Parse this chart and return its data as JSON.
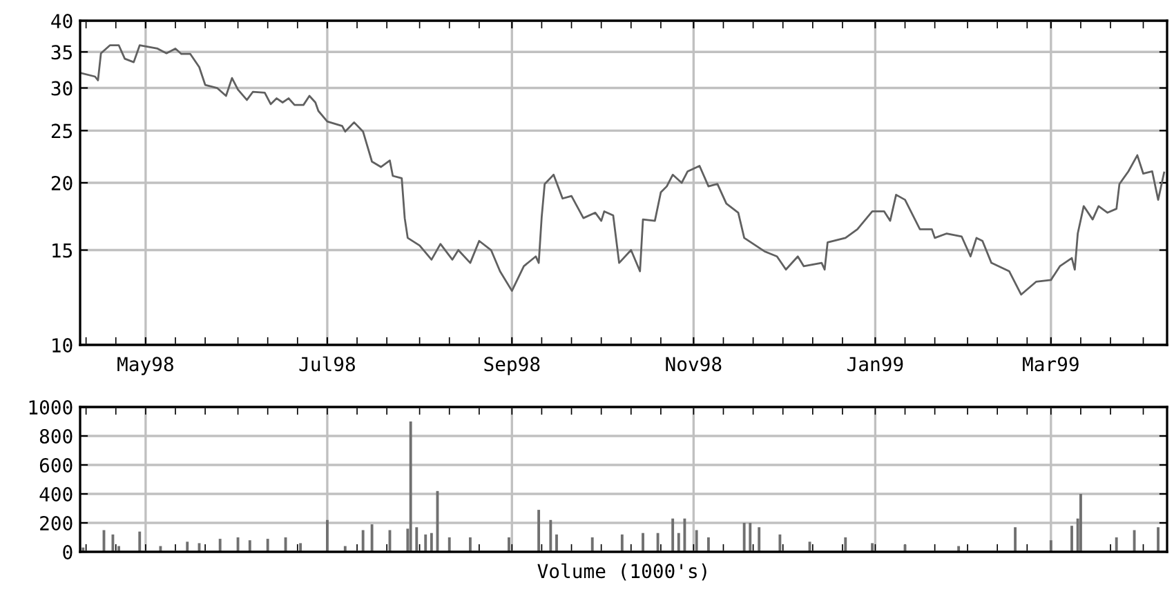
{
  "chart_data": [
    {
      "type": "line",
      "log": "y",
      "grid": true,
      "line_style": "solid",
      "marker": "none",
      "xlim": [
        "1998-04-09",
        "1999-04-09"
      ],
      "xticks": [
        {
          "value": "1998-04-11",
          "label": null
        },
        {
          "value": "1998-04-21",
          "label": null
        },
        {
          "value": "1998-05-01",
          "label": "May98"
        },
        {
          "value": "1998-05-11",
          "label": null
        },
        {
          "value": "1998-05-21",
          "label": null
        },
        {
          "value": "1998-06-01",
          "label": null
        },
        {
          "value": "1998-06-11",
          "label": null
        },
        {
          "value": "1998-06-21",
          "label": null
        },
        {
          "value": "1998-07-01",
          "label": "Jul98"
        },
        {
          "value": "1998-07-11",
          "label": null
        },
        {
          "value": "1998-07-21",
          "label": null
        },
        {
          "value": "1998-08-01",
          "label": null
        },
        {
          "value": "1998-08-11",
          "label": null
        },
        {
          "value": "1998-08-21",
          "label": null
        },
        {
          "value": "1998-09-01",
          "label": "Sep98"
        },
        {
          "value": "1998-09-11",
          "label": null
        },
        {
          "value": "1998-09-21",
          "label": null
        },
        {
          "value": "1998-10-01",
          "label": null
        },
        {
          "value": "1998-10-11",
          "label": null
        },
        {
          "value": "1998-10-21",
          "label": null
        },
        {
          "value": "1998-11-01",
          "label": "Nov98"
        },
        {
          "value": "1998-11-11",
          "label": null
        },
        {
          "value": "1998-11-21",
          "label": null
        },
        {
          "value": "1998-12-01",
          "label": null
        },
        {
          "value": "1998-12-11",
          "label": null
        },
        {
          "value": "1998-12-21",
          "label": null
        },
        {
          "value": "1999-01-01",
          "label": "Jan99"
        },
        {
          "value": "1999-01-11",
          "label": null
        },
        {
          "value": "1999-01-21",
          "label": null
        },
        {
          "value": "1999-02-01",
          "label": null
        },
        {
          "value": "1999-02-11",
          "label": null
        },
        {
          "value": "1999-02-21",
          "label": null
        },
        {
          "value": "1999-03-01",
          "label": "Mar99"
        },
        {
          "value": "1999-03-11",
          "label": null
        },
        {
          "value": "1999-03-21",
          "label": null
        },
        {
          "value": "1999-04-01",
          "label": null
        }
      ],
      "ylim": [
        10,
        40
      ],
      "yticks": [
        10,
        15,
        20,
        25,
        30,
        35,
        40
      ],
      "x": [
        "1998-04-09",
        "1998-04-14",
        "1998-04-15",
        "1998-04-16",
        "1998-04-19",
        "1998-04-22",
        "1998-04-24",
        "1998-04-27",
        "1998-04-29",
        "1998-05-05",
        "1998-05-08",
        "1998-05-11",
        "1998-05-13",
        "1998-05-16",
        "1998-05-19",
        "1998-05-21",
        "1998-05-25",
        "1998-05-28",
        "1998-05-30",
        "1998-06-01",
        "1998-06-04",
        "1998-06-06",
        "1998-06-10",
        "1998-06-12",
        "1998-06-14",
        "1998-06-16",
        "1998-06-18",
        "1998-06-20",
        "1998-06-23",
        "1998-06-25",
        "1998-06-27",
        "1998-06-28",
        "1998-07-01",
        "1998-07-06",
        "1998-07-07",
        "1998-07-10",
        "1998-07-13",
        "1998-07-16",
        "1998-07-19",
        "1998-07-22",
        "1998-07-23",
        "1998-07-26",
        "1998-07-27",
        "1998-07-28",
        "1998-08-01",
        "1998-08-05",
        "1998-08-08",
        "1998-08-12",
        "1998-08-14",
        "1998-08-18",
        "1998-08-21",
        "1998-08-25",
        "1998-08-28",
        "1998-09-01",
        "1998-09-05",
        "1998-09-09",
        "1998-09-10",
        "1998-09-11",
        "1998-09-12",
        "1998-09-15",
        "1998-09-18",
        "1998-09-21",
        "1998-09-25",
        "1998-09-29",
        "1998-10-01",
        "1998-10-02",
        "1998-10-05",
        "1998-10-07",
        "1998-10-11",
        "1998-10-14",
        "1998-10-15",
        "1998-10-19",
        "1998-10-21",
        "1998-10-23",
        "1998-10-25",
        "1998-10-28",
        "1998-10-30",
        "1998-11-03",
        "1998-11-06",
        "1998-11-09",
        "1998-11-12",
        "1998-11-16",
        "1998-11-18",
        "1998-11-25",
        "1998-11-29",
        "1998-12-02",
        "1998-12-06",
        "1998-12-08",
        "1998-12-14",
        "1998-12-15",
        "1998-12-16",
        "1998-12-22",
        "1998-12-26",
        "1998-12-31",
        "1999-01-04",
        "1999-01-06",
        "1999-01-08",
        "1999-01-11",
        "1999-01-16",
        "1999-01-20",
        "1999-01-21",
        "1999-01-25",
        "1999-01-30",
        "1999-02-02",
        "1999-02-04",
        "1999-02-06",
        "1999-02-09",
        "1999-02-15",
        "1999-02-19",
        "1999-02-24",
        "1999-03-01",
        "1999-03-04",
        "1999-03-08",
        "1999-03-09",
        "1999-03-10",
        "1999-03-12",
        "1999-03-15",
        "1999-03-17",
        "1999-03-20",
        "1999-03-23",
        "1999-03-24",
        "1999-03-27",
        "1999-03-30",
        "1999-04-01",
        "1999-04-04",
        "1999-04-06",
        "1999-04-08"
      ],
      "series": [
        {
          "color": "#606060",
          "values": [
            32,
            31.5,
            31,
            34.8,
            36,
            36,
            34,
            33.5,
            36,
            35.5,
            34.8,
            35.5,
            34.7,
            34.7,
            32.8,
            30.4,
            30,
            29,
            31.3,
            29.8,
            28.5,
            29.5,
            29.4,
            28,
            28.7,
            28.2,
            28.7,
            27.9,
            27.9,
            29,
            28.2,
            27.2,
            26,
            25.5,
            24.9,
            25.9,
            24.9,
            21.9,
            21.4,
            22,
            20.6,
            20.4,
            17.2,
            15.8,
            15.3,
            14.4,
            15.4,
            14.4,
            15,
            14.2,
            15.6,
            15,
            13.7,
            12.6,
            14,
            14.6,
            14.2,
            17.3,
            19.9,
            20.7,
            18.7,
            18.9,
            17.2,
            17.6,
            17,
            17.7,
            17.4,
            14.2,
            15,
            13.7,
            17.1,
            17,
            19.2,
            19.7,
            20.7,
            20,
            21,
            21.5,
            19.7,
            19.9,
            18.3,
            17.6,
            15.8,
            14.9,
            14.6,
            13.8,
            14.6,
            14,
            14.2,
            13.8,
            15.5,
            15.8,
            16.4,
            17.7,
            17.7,
            17,
            19,
            18.6,
            16.4,
            16.4,
            15.8,
            16.1,
            15.9,
            14.6,
            15.8,
            15.6,
            14.2,
            13.7,
            12.4,
            13.1,
            13.2,
            14,
            14.5,
            13.8,
            16.1,
            18.1,
            17.1,
            18.1,
            17.6,
            17.9,
            19.9,
            21,
            22.5,
            20.8,
            21,
            18.6,
            20.9
          ]
        }
      ]
    },
    {
      "type": "bar",
      "grid": true,
      "tick_labels": "y",
      "xlabel": "Volume (1000's)",
      "xlim": [
        "1998-04-09",
        "1999-04-09"
      ],
      "xticks": [
        {
          "value": "1998-04-11",
          "label": null
        },
        {
          "value": "1998-04-21",
          "label": null
        },
        {
          "value": "1998-05-01",
          "label": null
        },
        {
          "value": "1998-05-11",
          "label": null
        },
        {
          "value": "1998-05-21",
          "label": null
        },
        {
          "value": "1998-06-01",
          "label": null
        },
        {
          "value": "1998-06-11",
          "label": null
        },
        {
          "value": "1998-06-21",
          "label": null
        },
        {
          "value": "1998-07-01",
          "label": null
        },
        {
          "value": "1998-07-11",
          "label": null
        },
        {
          "value": "1998-07-21",
          "label": null
        },
        {
          "value": "1998-08-01",
          "label": null
        },
        {
          "value": "1998-08-11",
          "label": null
        },
        {
          "value": "1998-08-21",
          "label": null
        },
        {
          "value": "1998-09-01",
          "label": null
        },
        {
          "value": "1998-09-11",
          "label": null
        },
        {
          "value": "1998-09-21",
          "label": null
        },
        {
          "value": "1998-10-01",
          "label": null
        },
        {
          "value": "1998-10-11",
          "label": null
        },
        {
          "value": "1998-10-21",
          "label": null
        },
        {
          "value": "1998-11-01",
          "label": null
        },
        {
          "value": "1998-11-11",
          "label": null
        },
        {
          "value": "1998-11-21",
          "label": null
        },
        {
          "value": "1998-12-01",
          "label": null
        },
        {
          "value": "1998-12-11",
          "label": null
        },
        {
          "value": "1998-12-21",
          "label": null
        },
        {
          "value": "1999-01-01",
          "label": null
        },
        {
          "value": "1999-01-11",
          "label": null
        },
        {
          "value": "1999-01-21",
          "label": null
        },
        {
          "value": "1999-02-01",
          "label": null
        },
        {
          "value": "1999-02-11",
          "label": null
        },
        {
          "value": "1999-02-21",
          "label": null
        },
        {
          "value": "1999-03-01",
          "label": null
        },
        {
          "value": "1999-03-11",
          "label": null
        },
        {
          "value": "1999-03-21",
          "label": null
        },
        {
          "value": "1999-04-01",
          "label": null
        }
      ],
      "ylim": [
        0,
        1000
      ],
      "yticks": [
        0,
        200,
        400,
        600,
        800,
        1000
      ],
      "x": [
        "1998-04-10",
        "1998-04-17",
        "1998-04-20",
        "1998-04-22",
        "1998-04-29",
        "1998-05-06",
        "1998-05-15",
        "1998-05-19",
        "1998-05-26",
        "1998-06-01",
        "1998-06-05",
        "1998-06-11",
        "1998-06-17",
        "1998-06-22",
        "1998-07-01",
        "1998-07-07",
        "1998-07-13",
        "1998-07-16",
        "1998-07-22",
        "1998-07-28",
        "1998-07-29",
        "1998-07-31",
        "1998-08-03",
        "1998-08-05",
        "1998-08-07",
        "1998-08-11",
        "1998-08-18",
        "1998-08-31",
        "1998-09-10",
        "1998-09-14",
        "1998-09-16",
        "1998-09-28",
        "1998-10-08",
        "1998-10-15",
        "1998-10-20",
        "1998-10-25",
        "1998-10-27",
        "1998-10-29",
        "1998-11-02",
        "1998-11-06",
        "1998-11-18",
        "1998-11-20",
        "1998-11-23",
        "1998-11-30",
        "1998-12-10",
        "1998-12-22",
        "1998-12-31",
        "1999-01-11",
        "1999-01-29",
        "1999-02-17",
        "1999-03-01",
        "1999-03-08",
        "1999-03-10",
        "1999-03-11",
        "1999-03-23",
        "1999-03-29",
        "1999-04-06"
      ],
      "series": [
        {
          "color": "#707070",
          "values": [
            30,
            150,
            120,
            40,
            140,
            40,
            70,
            60,
            90,
            100,
            80,
            90,
            100,
            60,
            220,
            40,
            150,
            190,
            150,
            160,
            900,
            170,
            120,
            130,
            420,
            100,
            100,
            100,
            290,
            220,
            120,
            100,
            120,
            130,
            130,
            230,
            130,
            230,
            150,
            100,
            200,
            200,
            170,
            120,
            70,
            100,
            60,
            50,
            40,
            170,
            80,
            180,
            230,
            400,
            100,
            150,
            170
          ]
        }
      ]
    }
  ]
}
